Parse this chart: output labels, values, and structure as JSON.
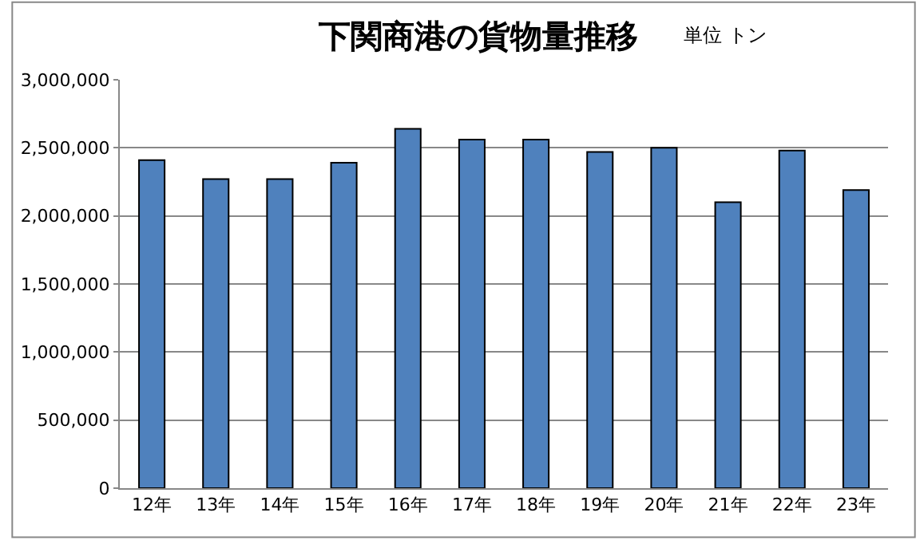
{
  "chart_data": {
    "type": "bar",
    "title": "下関商港の貨物量推移",
    "subtitle": "単位 トン",
    "categories": [
      "12年",
      "13年",
      "14年",
      "15年",
      "16年",
      "17年",
      "18年",
      "19年",
      "20年",
      "21年",
      "22年",
      "23年"
    ],
    "values": [
      2410000,
      2270000,
      2270000,
      2390000,
      2640000,
      2560000,
      2560000,
      2470000,
      2500000,
      2100000,
      2480000,
      2190000
    ],
    "color": "#4f81bd",
    "ylim": [
      0,
      3000000
    ],
    "yticks": [
      {
        "value": 0,
        "label": "0"
      },
      {
        "value": 500000,
        "label": "500,000"
      },
      {
        "value": 1000000,
        "label": "1,000,000"
      },
      {
        "value": 1500000,
        "label": "1,500,000"
      },
      {
        "value": 2000000,
        "label": "2,000,000"
      },
      {
        "value": 2500000,
        "label": "2,500,000"
      },
      {
        "value": 3000000,
        "label": "3,000,000"
      }
    ],
    "grid": "y"
  }
}
